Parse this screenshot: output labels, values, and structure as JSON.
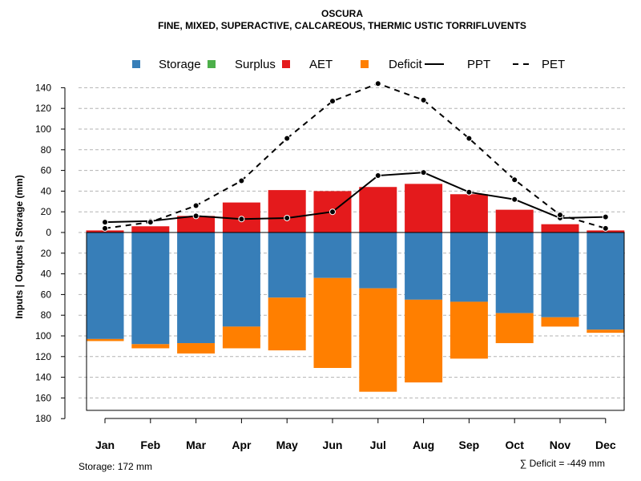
{
  "chart_data": {
    "type": "bar",
    "title": "OSCURA",
    "subtitle": "FINE, MIXED, SUPERACTIVE, CALCAREOUS, THERMIC USTIC TORRIFLUVENTS",
    "ylabel": "Inputs | Outputs | Storage    (mm)",
    "ylim": [
      -180,
      150
    ],
    "y_ticks": [
      140,
      120,
      100,
      80,
      60,
      40,
      20,
      0,
      -20,
      -40,
      -60,
      -80,
      -100,
      -120,
      -140,
      -160,
      -180
    ],
    "y_tick_labels": [
      "140",
      "120",
      "100",
      "80",
      "60",
      "40",
      "20",
      "0",
      "20",
      "40",
      "60",
      "80",
      "100",
      "120",
      "140",
      "160",
      "180"
    ],
    "grid": true,
    "categories": [
      "Jan",
      "Feb",
      "Mar",
      "Apr",
      "May",
      "Jun",
      "Jul",
      "Aug",
      "Sep",
      "Oct",
      "Nov",
      "Dec"
    ],
    "series": [
      {
        "name": "Storage",
        "color": "#377EB8",
        "values": [
          -103,
          -108,
          -107,
          -91,
          -63,
          -44,
          -54,
          -65,
          -67,
          -78,
          -82,
          -94
        ]
      },
      {
        "name": "Surplus",
        "color": "#4DAF4A",
        "values": [
          0,
          0,
          0,
          0,
          0,
          0,
          0,
          0,
          0,
          0,
          0,
          0
        ]
      },
      {
        "name": "AET",
        "color": "#E41A1C",
        "values": [
          2,
          6,
          16,
          29,
          41,
          40,
          44,
          47,
          37,
          22,
          8,
          2
        ]
      },
      {
        "name": "Deficit",
        "color": "#FF7F00",
        "values": [
          -2,
          -4,
          -10,
          -21,
          -51,
          -87,
          -100,
          -80,
          -55,
          -29,
          -9,
          -3
        ]
      },
      {
        "name": "PPT",
        "color": "#000000",
        "values": [
          10,
          11,
          16,
          13,
          14,
          20,
          55,
          58,
          39,
          32,
          14,
          15
        ]
      },
      {
        "name": "PET",
        "color": "#000000",
        "values": [
          4,
          10,
          26,
          50,
          91,
          127,
          144,
          128,
          91,
          51,
          17,
          4
        ]
      }
    ],
    "storage_capacity": 172,
    "legend": [
      {
        "label": "Storage",
        "kind": "square",
        "color": "#377EB8"
      },
      {
        "label": "Surplus",
        "kind": "square",
        "color": "#4DAF4A"
      },
      {
        "label": "AET",
        "kind": "square",
        "color": "#E41A1C"
      },
      {
        "label": "Deficit",
        "kind": "square",
        "color": "#FF7F00"
      },
      {
        "label": "PPT",
        "kind": "solid-line",
        "color": "#000000"
      },
      {
        "label": "PET",
        "kind": "dashed-line",
        "color": "#000000"
      }
    ],
    "legend_position": "top",
    "notes": {
      "storage": "Storage: 172 mm",
      "deficit": "∑ Deficit = -449 mm"
    }
  }
}
